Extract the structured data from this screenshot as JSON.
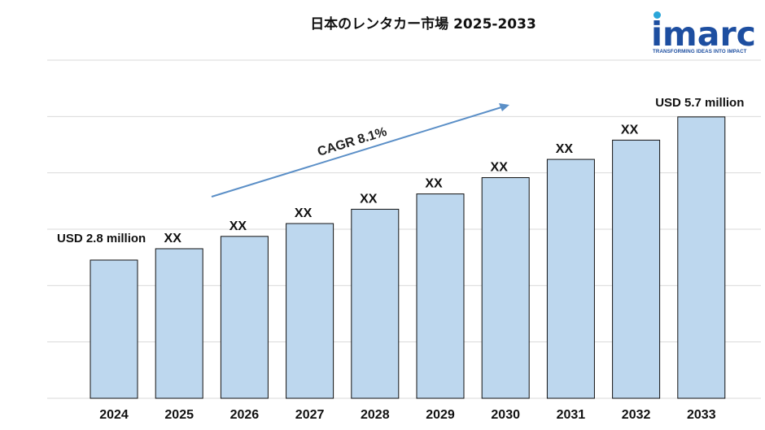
{
  "logo": {
    "wordmark": "imarc",
    "tagline": "TRANSFORMING IDEAS INTO IMPACT",
    "brand_color": "#1d4ea0",
    "accent_color": "#2aa6d9"
  },
  "chart_data": {
    "type": "bar",
    "title": "日本のレンタカー市場 2025-2033",
    "xlabel": "",
    "ylabel": "",
    "categories": [
      "2024",
      "2025",
      "2026",
      "2027",
      "2028",
      "2029",
      "2030",
      "2031",
      "2032",
      "2033"
    ],
    "values": [
      2.8,
      3.03,
      3.28,
      3.54,
      3.83,
      4.14,
      4.47,
      4.84,
      5.23,
      5.7
    ],
    "data_labels": [
      "USD 2.8 million",
      "XX",
      "XX",
      "XX",
      "XX",
      "XX",
      "XX",
      "XX",
      "XX",
      "USD 5.7 million"
    ],
    "annotation": "CAGR 8.1%",
    "ylim": [
      0,
      6.85
    ],
    "grid": true,
    "legend": "none",
    "bar_color": "#bdd7ee",
    "bar_edge_color": "#111111",
    "arrow_color": "#5b8fc7"
  }
}
